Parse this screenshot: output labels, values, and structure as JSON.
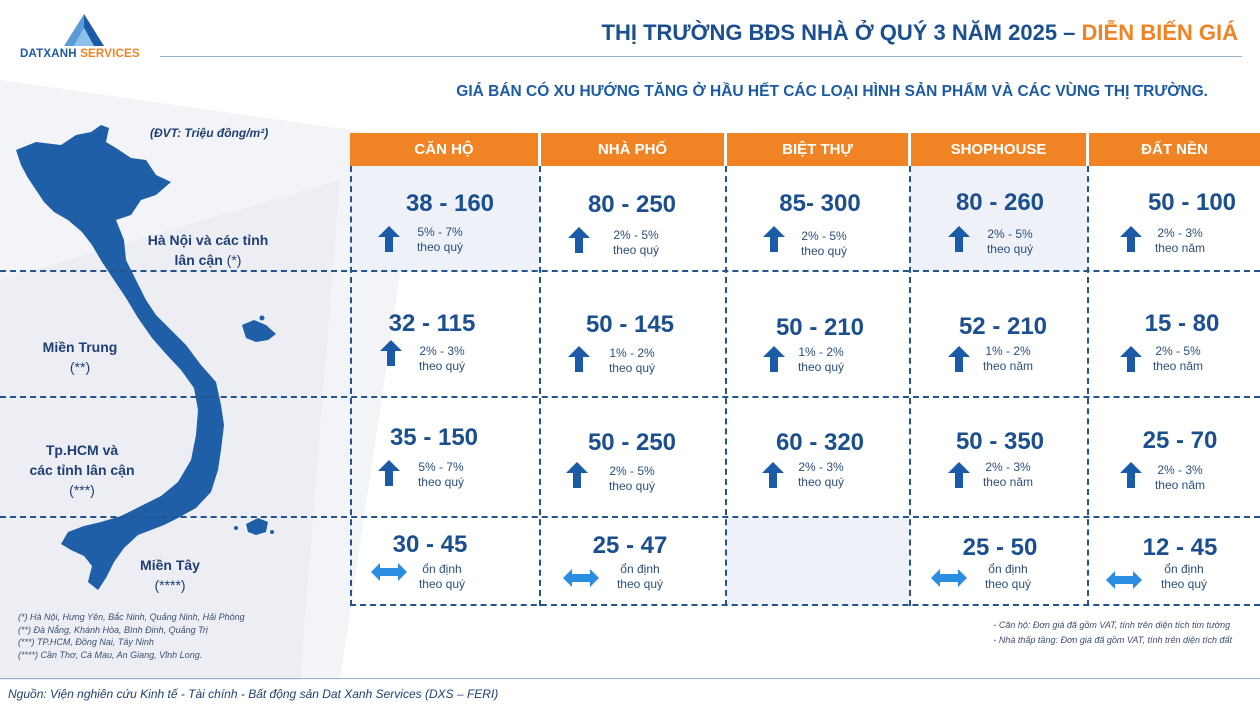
{
  "header": {
    "logo_main": "DATXANH",
    "logo_accent": "SERVICES",
    "title_main": "THỊ TRƯỜNG BĐS NHÀ Ở QUÝ 3 NĂM 2025 – ",
    "title_highlight": "DIỄN BIẾN GIÁ",
    "subtitle": "GIÁ BÁN CÓ XU HƯỚNG TĂNG Ở HẦU HẾT CÁC LOẠI HÌNH SẢN PHẨM VÀ CÁC VÙNG THỊ TRƯỜNG.",
    "unit": "(ĐVT: Triệu đồng/m²)"
  },
  "columns": [
    "CĂN HỘ",
    "NHÀ PHỐ",
    "BIỆT THỰ",
    "SHOPHOUSE",
    "ĐẤT NỀN"
  ],
  "regions": [
    {
      "name": "Hà Nội và các tỉnh",
      "name2": "lân cận",
      "note": "(*)"
    },
    {
      "name": "Miền Trung",
      "name2": "",
      "note": "(**)"
    },
    {
      "name": "Tp.HCM và",
      "name2": "các tỉnh lân cận",
      "note": "(***)"
    },
    {
      "name": "Miền Tây",
      "name2": "",
      "note": "(****)"
    }
  ],
  "cells": [
    [
      {
        "range": "38 - 160",
        "trend": "up",
        "change": "5% - 7%",
        "period": "theo quý"
      },
      {
        "range": "80 - 250",
        "trend": "up",
        "change": "2% - 5%",
        "period": "theo quý"
      },
      {
        "range": "85- 300",
        "trend": "up",
        "change": "2% - 5%",
        "period": "theo quý"
      },
      {
        "range": "80 - 260",
        "trend": "up",
        "change": "2% - 5%",
        "period": "theo quý"
      },
      {
        "range": "50 - 100",
        "trend": "up",
        "change": "2% - 3%",
        "period": "theo năm"
      }
    ],
    [
      {
        "range": "32 - 115",
        "trend": "up",
        "change": "2% - 3%",
        "period": "theo quý"
      },
      {
        "range": "50 - 145",
        "trend": "up",
        "change": "1% - 2%",
        "period": "theo quý"
      },
      {
        "range": "50 - 210",
        "trend": "up",
        "change": "1% - 2%",
        "period": "theo quý"
      },
      {
        "range": "52 - 210",
        "trend": "up",
        "change": "1% - 2%",
        "period": "theo năm"
      },
      {
        "range": "15 - 80",
        "trend": "up",
        "change": "2% - 5%",
        "period": "theo năm"
      }
    ],
    [
      {
        "range": "35 - 150",
        "trend": "up",
        "change": "5% - 7%",
        "period": "theo quý"
      },
      {
        "range": "50 - 250",
        "trend": "up",
        "change": "2% - 5%",
        "period": "theo quý"
      },
      {
        "range": "60 - 320",
        "trend": "up",
        "change": "2% - 3%",
        "period": "theo quý"
      },
      {
        "range": "50 - 350",
        "trend": "up",
        "change": "2% - 3%",
        "period": "theo năm"
      },
      {
        "range": "25 - 70",
        "trend": "up",
        "change": "2% - 3%",
        "period": "theo năm"
      }
    ],
    [
      {
        "range": "30 - 45",
        "trend": "flat",
        "change": "ổn định",
        "period": "theo quý"
      },
      {
        "range": "25 - 47",
        "trend": "flat",
        "change": "ổn định",
        "period": "theo quý"
      },
      null,
      {
        "range": "25 - 50",
        "trend": "flat",
        "change": "ổn định",
        "period": "theo quý"
      },
      {
        "range": "12 - 45",
        "trend": "flat",
        "change": "ổn định",
        "period": "theo quý"
      }
    ]
  ],
  "footnotes_left": [
    "(*) Hà Nội, Hưng Yên, Bắc Ninh, Quảng Ninh, Hải Phòng",
    "(**) Đà Nẵng, Khánh Hòa, Bình Định, Quảng Trị",
    "(***) TP.HCM, Đồng Nai, Tây Ninh",
    "(****) Cần Thơ, Cà Mau, An Giang, Vĩnh Long."
  ],
  "footnotes_right": [
    "- Căn hộ: Đơn giá đã gồm VAT, tính trên diện tích tim tường",
    "- Nhà thấp tầng: Đơn giá đã gồm VAT, tính trên diện tích đất"
  ],
  "source": "Nguồn: Viện nghiên cứu Kinh tế - Tài chính - Bất động sản Dat Xanh Services (DXS – FERI)",
  "colors": {
    "accent": "#f08323",
    "primary": "#1b5aa6",
    "dark": "#1b4f8f"
  }
}
